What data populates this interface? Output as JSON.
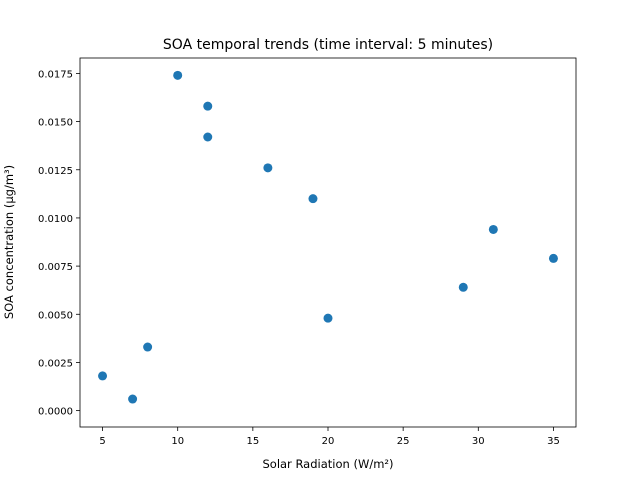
{
  "chart_data": {
    "type": "scatter",
    "title": "SOA temporal trends (time interval: 5 minutes)",
    "xlabel": "Solar Radiation (W/m²)",
    "ylabel": "SOA concentration (µg/m³)",
    "xlim": [
      3.5,
      36.5
    ],
    "ylim": [
      -0.00085,
      0.0183
    ],
    "xticks": [
      5,
      10,
      15,
      20,
      25,
      30,
      35
    ],
    "xtick_labels": [
      "5",
      "10",
      "15",
      "20",
      "25",
      "30",
      "35"
    ],
    "yticks": [
      0.0,
      0.0025,
      0.005,
      0.0075,
      0.01,
      0.0125,
      0.015,
      0.0175
    ],
    "ytick_labels": [
      "0.0000",
      "0.0025",
      "0.0050",
      "0.0075",
      "0.0100",
      "0.0125",
      "0.0150",
      "0.0175"
    ],
    "grid": false,
    "legend": "none",
    "marker_color": "#1f77b4",
    "points": [
      {
        "x": 10,
        "y": 0.0174
      },
      {
        "x": 12,
        "y": 0.0158
      },
      {
        "x": 12,
        "y": 0.0142
      },
      {
        "x": 16,
        "y": 0.0126
      },
      {
        "x": 19,
        "y": 0.011
      },
      {
        "x": 31,
        "y": 0.0094
      },
      {
        "x": 35,
        "y": 0.0079
      },
      {
        "x": 29,
        "y": 0.0064
      },
      {
        "x": 20,
        "y": 0.0048
      },
      {
        "x": 8,
        "y": 0.0033
      },
      {
        "x": 5,
        "y": 0.0018
      },
      {
        "x": 7,
        "y": 0.0006
      }
    ]
  }
}
